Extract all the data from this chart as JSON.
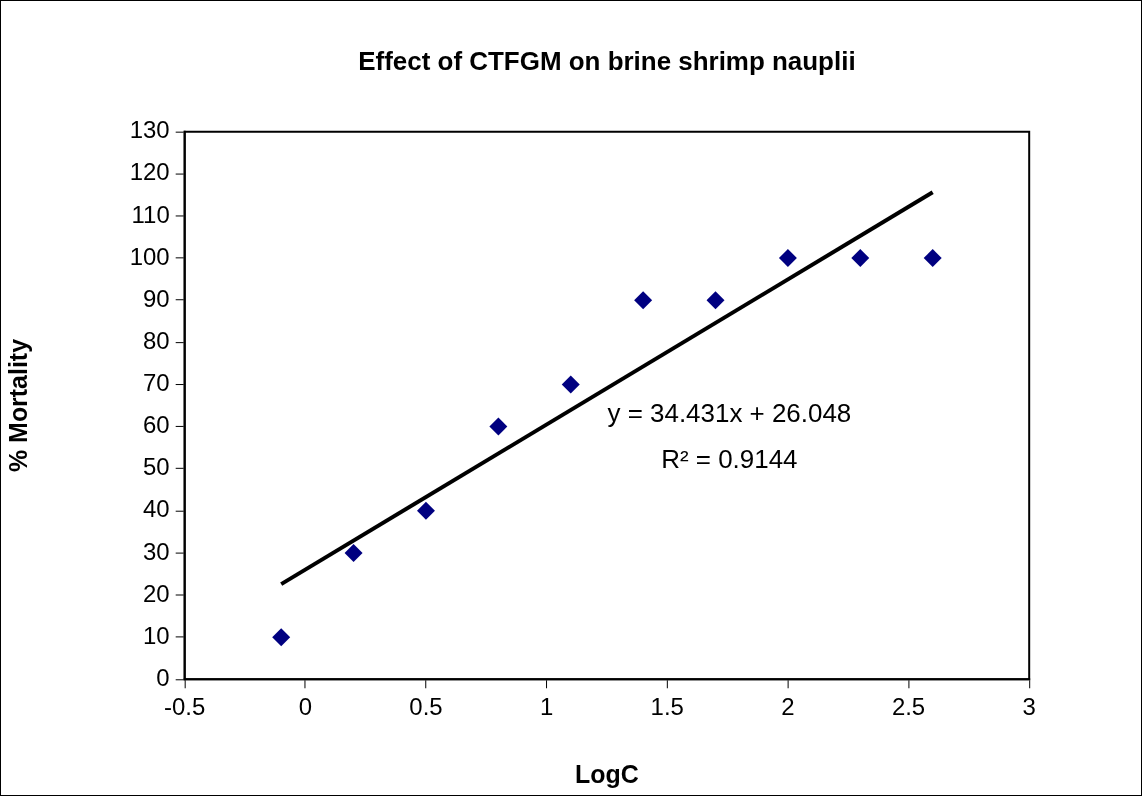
{
  "chart_data": {
    "type": "scatter",
    "title": "Effect of CTFGM on brine shrimp nauplii",
    "xlabel": "LogC",
    "ylabel": "% Mortality",
    "x": [
      -0.1,
      0.2,
      0.5,
      0.8,
      1.1,
      1.4,
      1.7,
      2.0,
      2.3,
      2.6
    ],
    "series": [
      {
        "color": "#000080",
        "values": [
          10,
          30,
          40,
          60,
          70,
          90,
          90,
          100,
          100,
          100
        ],
        "marker": "diamond"
      },
      {
        "type": "line",
        "color": "#000000",
        "x": [
          -0.1,
          2.6
        ],
        "values": [
          22.6,
          115.6
        ],
        "marker": "none",
        "line_style": "solid"
      }
    ],
    "xlim": [
      -0.5,
      3
    ],
    "xticks": [
      -0.5,
      0,
      0.5,
      1,
      1.5,
      2,
      2.5,
      3
    ],
    "ylim": [
      0,
      130
    ],
    "yticks": [
      0,
      10,
      20,
      30,
      40,
      50,
      60,
      70,
      80,
      90,
      100,
      110,
      120,
      130
    ],
    "annotations": [
      "y = 34.431x + 26.048",
      "R² = 0.9144"
    ],
    "grid": false,
    "legend": false
  }
}
